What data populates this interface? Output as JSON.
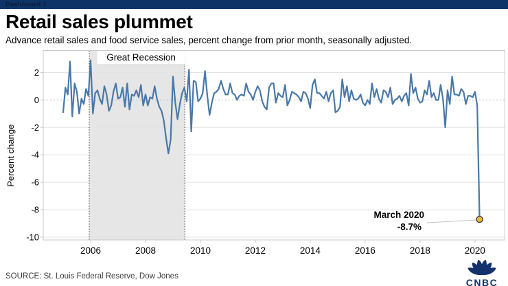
{
  "window": {
    "tab_label": "Dashboard 1"
  },
  "header": {
    "title": "Retail sales plummet",
    "subtitle": "Advance retail sales and food service sales, percent change from prior month, seasonally adjusted."
  },
  "chart_data": {
    "type": "line",
    "title": "Retail sales plummet",
    "xlabel": "",
    "ylabel": "Percent change",
    "x_tick_labels": [
      "2006",
      "2008",
      "2010",
      "2012",
      "2014",
      "2016",
      "2018",
      "2020"
    ],
    "y_tick_values": [
      2,
      0,
      -2,
      -4,
      -6,
      -8,
      -10
    ],
    "x_domain": [
      2004.275,
      2021.09
    ],
    "y_domain": [
      -10.2,
      3.6
    ],
    "grid": true,
    "legend": false,
    "start_year": 2005,
    "recession_band": {
      "label": "Great Recession",
      "x_start": 2005.95,
      "x_end": 2009.43,
      "fill": "#e6e6e6"
    },
    "series": [
      {
        "name": "Percent change from prior month",
        "color": "#4978a8",
        "monthly_values": [
          -0.9,
          0.9,
          0.4,
          2.8,
          -1.2,
          1.2,
          0.6,
          -1.0,
          0.1,
          -0.3,
          0.8,
          0.3,
          2.9,
          -1.0,
          0.5,
          0.7,
          0.1,
          -0.3,
          1.0,
          0.4,
          -0.8,
          -0.4,
          0.6,
          1.2,
          0.1,
          0.2,
          0.9,
          -0.5,
          1.2,
          -0.7,
          0.4,
          0.3,
          0.7,
          0.2,
          1.1,
          -0.4,
          0.4,
          -0.4,
          0.2,
          0.1,
          1.0,
          0.1,
          -0.5,
          -0.8,
          -1.5,
          -2.8,
          -3.9,
          -2.9,
          1.7,
          -0.2,
          -1.4,
          -0.3,
          0.5,
          0.9,
          -0.1,
          2.2,
          -2.3,
          1.4,
          1.3,
          -0.1,
          0.1,
          0.5,
          2.1,
          0.3,
          -1.1,
          -0.2,
          0.5,
          0.6,
          0.8,
          1.4,
          0.8,
          0.4,
          0.4,
          1.2,
          0.5,
          0.4,
          0.0,
          0.3,
          0.4,
          0.3,
          1.2,
          0.6,
          0.4,
          0.0,
          0.6,
          1.0,
          0.7,
          -0.1,
          -0.5,
          -0.7,
          0.9,
          1.2,
          1.2,
          -0.2,
          0.5,
          0.3,
          0.2,
          1.1,
          -0.4,
          0.0,
          0.6,
          0.5,
          0.4,
          0.2,
          -0.1,
          0.6,
          0.5,
          0.1,
          -0.6,
          1.1,
          1.5,
          0.5,
          0.5,
          0.3,
          0.1,
          0.6,
          -0.1,
          0.5,
          0.7,
          -0.9,
          -0.8,
          -0.5,
          1.5,
          0.2,
          1.0,
          -0.1,
          0.7,
          0.1,
          0.0,
          0.1,
          0.4,
          -0.2,
          -0.4,
          0.0,
          -0.3,
          1.2,
          0.2,
          0.8,
          0.1,
          -0.2,
          0.7,
          0.6,
          0.2,
          0.9,
          -0.3,
          0.0,
          0.1,
          0.3,
          -0.1,
          0.3,
          0.5,
          -0.4,
          1.9,
          0.5,
          0.9,
          0.1,
          -0.2,
          -0.1,
          0.7,
          0.4,
          1.4,
          0.2,
          0.5,
          0.0,
          0.0,
          1.1,
          0.1,
          -2.0,
          0.7,
          -0.3,
          1.7,
          0.4,
          0.4,
          0.3,
          0.8,
          0.6,
          -0.3,
          0.3,
          0.3,
          0.2,
          0.6,
          -0.4,
          -8.7
        ]
      }
    ],
    "annotation": {
      "line1": "March 2020",
      "line2": "-8.7%",
      "point_x": 2020.167,
      "point_y": -8.7,
      "marker_fill": "#e8b93c",
      "marker_stroke": "#3f3f3f"
    }
  },
  "footer": {
    "source": "SOURCE: St. Louis Federal Reserve, Dow Jones",
    "logo_text": "CNBC"
  },
  "colors": {
    "topbar": "#0e3366",
    "line": "#4978a8",
    "band": "#e6e6e6",
    "logo_navy": "#13316d"
  }
}
